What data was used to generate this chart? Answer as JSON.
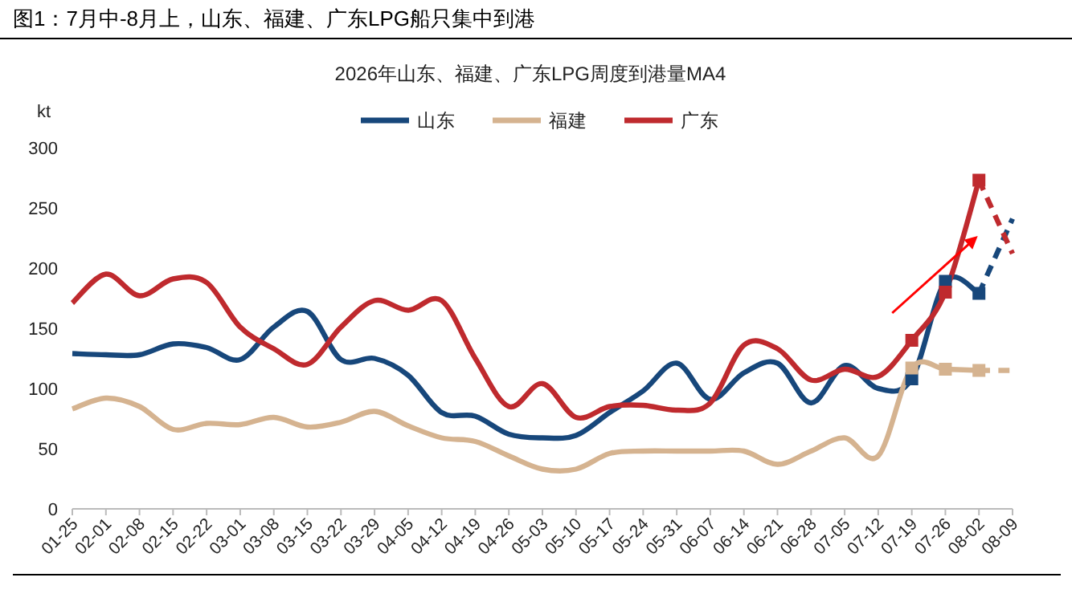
{
  "chart_data": {
    "type": "line",
    "title": "图1：7月中-8月上，山东、福建、广东LPG船只集中到港",
    "subtitle": "2026年山东、福建、广东LPG周度到港量MA4",
    "ylabel": "kt",
    "categories": [
      "01-25",
      "02-01",
      "02-08",
      "02-15",
      "02-22",
      "03-01",
      "03-08",
      "03-15",
      "03-22",
      "03-29",
      "04-05",
      "04-12",
      "04-19",
      "04-26",
      "05-03",
      "05-10",
      "05-17",
      "05-24",
      "05-31",
      "06-07",
      "06-14",
      "06-21",
      "06-28",
      "07-05",
      "07-12",
      "07-19",
      "07-26",
      "08-02",
      "08-09"
    ],
    "ylim": [
      0,
      300
    ],
    "yticks": [
      0,
      50,
      100,
      150,
      200,
      250,
      300
    ],
    "legend": "top",
    "grid": false,
    "series": [
      {
        "name": "山东",
        "color": "#17477b",
        "values": [
          129,
          128,
          128,
          137,
          134,
          124,
          151,
          164,
          124,
          125,
          111,
          80,
          77,
          62,
          59,
          61,
          80,
          98,
          121,
          91,
          113,
          121,
          88,
          119,
          100,
          108,
          189,
          179,
          null
        ]
      },
      {
        "name": "福建",
        "color": "#d5b390",
        "values": [
          83,
          92,
          85,
          66,
          71,
          70,
          76,
          68,
          72,
          81,
          69,
          59,
          56,
          44,
          33,
          33,
          46,
          48,
          48,
          48,
          48,
          37,
          48,
          59,
          44,
          117,
          116,
          115,
          null
        ]
      },
      {
        "name": "广东",
        "color": "#bf2a2e",
        "values": [
          171,
          195,
          177,
          191,
          188,
          151,
          133,
          120,
          151,
          173,
          165,
          173,
          125,
          85,
          104,
          76,
          85,
          86,
          82,
          88,
          136,
          133,
          107,
          116,
          110,
          140,
          180,
          273,
          null
        ]
      },
      {
        "type": "scatter",
        "marker": "square",
        "color": "#17477b",
        "values": [
          null,
          null,
          null,
          null,
          null,
          null,
          null,
          null,
          null,
          null,
          null,
          null,
          null,
          null,
          null,
          null,
          null,
          null,
          null,
          null,
          null,
          null,
          null,
          null,
          null,
          108,
          189,
          179,
          null
        ]
      },
      {
        "type": "scatter",
        "marker": "square",
        "color": "#d5b390",
        "values": [
          null,
          null,
          null,
          null,
          null,
          null,
          null,
          null,
          null,
          null,
          null,
          null,
          null,
          null,
          null,
          null,
          null,
          null,
          null,
          null,
          null,
          null,
          null,
          null,
          null,
          117,
          116,
          115,
          null
        ]
      },
      {
        "type": "scatter",
        "marker": "square",
        "color": "#bf2a2e",
        "values": [
          null,
          null,
          null,
          null,
          null,
          null,
          null,
          null,
          null,
          null,
          null,
          null,
          null,
          null,
          null,
          null,
          null,
          null,
          null,
          null,
          null,
          null,
          null,
          null,
          null,
          140,
          180,
          273,
          null
        ]
      },
      {
        "type": "line",
        "line_style": "dashed",
        "color": "#17477b",
        "values": [
          null,
          null,
          null,
          null,
          null,
          null,
          null,
          null,
          null,
          null,
          null,
          null,
          null,
          null,
          null,
          null,
          null,
          null,
          null,
          null,
          null,
          null,
          null,
          null,
          null,
          null,
          null,
          179,
          241
        ]
      },
      {
        "type": "line",
        "line_style": "dashed",
        "color": "#d5b390",
        "values": [
          null,
          null,
          null,
          null,
          null,
          null,
          null,
          null,
          null,
          null,
          null,
          null,
          null,
          null,
          null,
          null,
          null,
          null,
          null,
          null,
          null,
          null,
          null,
          null,
          null,
          null,
          null,
          115,
          115
        ]
      },
      {
        "type": "line",
        "line_style": "dashed",
        "color": "#bf2a2e",
        "values": [
          null,
          null,
          null,
          null,
          null,
          null,
          null,
          null,
          null,
          null,
          null,
          null,
          null,
          null,
          null,
          null,
          null,
          null,
          null,
          null,
          null,
          null,
          null,
          null,
          null,
          null,
          null,
          273,
          212
        ]
      }
    ]
  }
}
